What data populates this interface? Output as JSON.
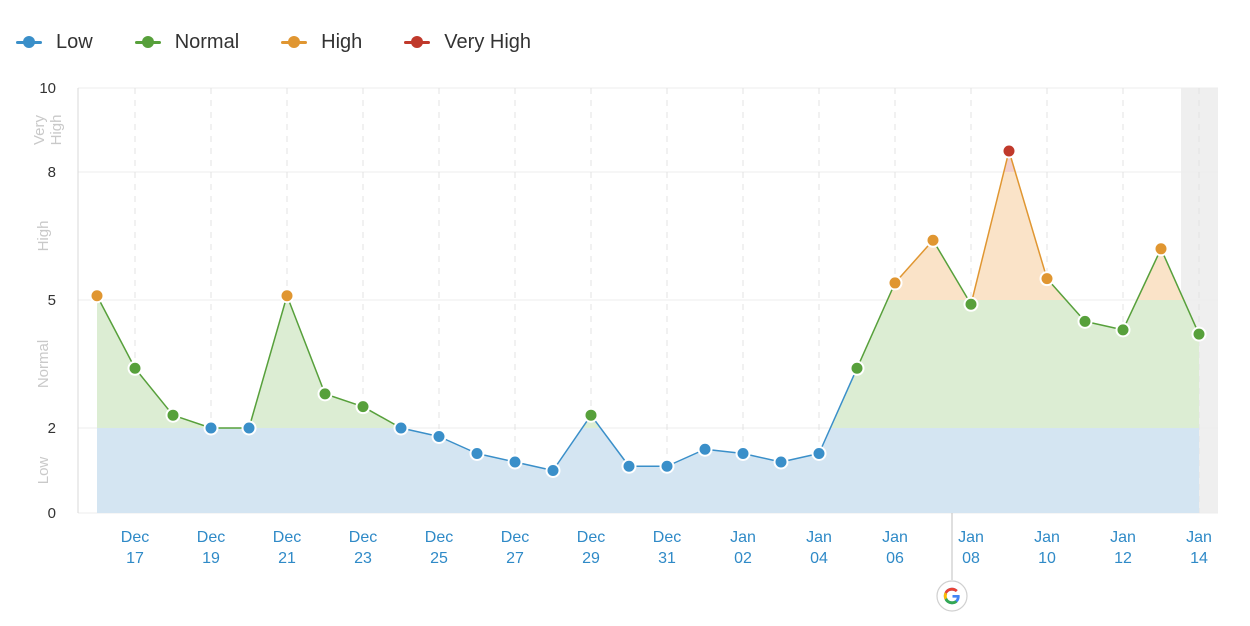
{
  "legend": [
    {
      "label": "Low",
      "color": "#3a8fc9"
    },
    {
      "label": "Normal",
      "color": "#57a03b"
    },
    {
      "label": "High",
      "color": "#e09631"
    },
    {
      "label": "Very High",
      "color": "#c0392b"
    }
  ],
  "chart_data": {
    "type": "area",
    "title": "",
    "xlabel": "",
    "ylabel": "",
    "ylim": [
      0,
      10
    ],
    "y_ticks": [
      "0",
      "2",
      "5",
      "8",
      "10"
    ],
    "y_tick_values": [
      0,
      2,
      5,
      8,
      10
    ],
    "bands": [
      {
        "label": "Low",
        "from": 0,
        "to": 2,
        "color": "#3a8fc9"
      },
      {
        "label": "Normal",
        "from": 2,
        "to": 5,
        "color": "#57a03b"
      },
      {
        "label": "High",
        "from": 5,
        "to": 8,
        "color": "#e09631"
      },
      {
        "label": "Very High",
        "from": 8,
        "to": 10,
        "color": "#c0392b"
      }
    ],
    "x": [
      "Dec 16",
      "Dec 17",
      "Dec 18",
      "Dec 19",
      "Dec 20",
      "Dec 21",
      "Dec 22",
      "Dec 23",
      "Dec 24",
      "Dec 25",
      "Dec 26",
      "Dec 27",
      "Dec 28",
      "Dec 29",
      "Dec 30",
      "Dec 31",
      "Jan 01",
      "Jan 02",
      "Jan 03",
      "Jan 04",
      "Jan 05",
      "Jan 06",
      "Jan 07",
      "Jan 08",
      "Jan 09",
      "Jan 10",
      "Jan 11",
      "Jan 12",
      "Jan 13",
      "Jan 14"
    ],
    "x_tick_labels": [
      {
        "index": 1,
        "line1": "Dec",
        "line2": "17"
      },
      {
        "index": 3,
        "line1": "Dec",
        "line2": "19"
      },
      {
        "index": 5,
        "line1": "Dec",
        "line2": "21"
      },
      {
        "index": 7,
        "line1": "Dec",
        "line2": "23"
      },
      {
        "index": 9,
        "line1": "Dec",
        "line2": "25"
      },
      {
        "index": 11,
        "line1": "Dec",
        "line2": "27"
      },
      {
        "index": 13,
        "line1": "Dec",
        "line2": "29"
      },
      {
        "index": 15,
        "line1": "Dec",
        "line2": "31"
      },
      {
        "index": 17,
        "line1": "Jan",
        "line2": "02"
      },
      {
        "index": 19,
        "line1": "Jan",
        "line2": "04"
      },
      {
        "index": 21,
        "line1": "Jan",
        "line2": "06"
      },
      {
        "index": 23,
        "line1": "Jan",
        "line2": "08"
      },
      {
        "index": 25,
        "line1": "Jan",
        "line2": "10"
      },
      {
        "index": 27,
        "line1": "Jan",
        "line2": "12"
      },
      {
        "index": 29,
        "line1": "Jan",
        "line2": "14"
      }
    ],
    "values": [
      5.1,
      3.4,
      2.3,
      2.0,
      2.0,
      5.1,
      2.8,
      2.5,
      2.0,
      1.8,
      1.4,
      1.2,
      1.0,
      2.3,
      1.1,
      1.1,
      1.5,
      1.4,
      1.2,
      1.4,
      3.4,
      5.4,
      6.4,
      4.9,
      8.5,
      5.5,
      4.5,
      4.3,
      6.2,
      4.2
    ],
    "google_update_marker_x": "Jan 07",
    "google_marker_icon": "google-g-icon",
    "highlighted_last_period": "Jan 14",
    "grid": true
  }
}
